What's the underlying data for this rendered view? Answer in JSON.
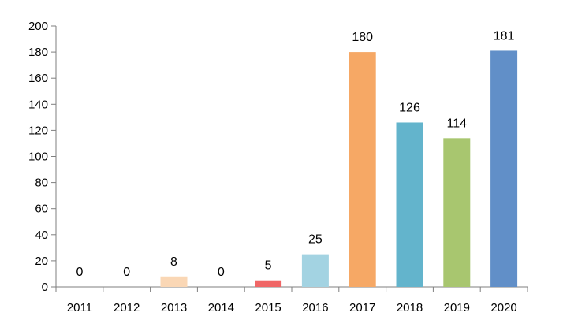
{
  "chart_data": {
    "type": "bar",
    "categories": [
      "2011",
      "2012",
      "2013",
      "2014",
      "2015",
      "2016",
      "2017",
      "2018",
      "2019",
      "2020"
    ],
    "values": [
      0,
      0,
      8,
      0,
      5,
      25,
      180,
      126,
      114,
      181
    ],
    "data_labels": [
      "0",
      "0",
      "8",
      "0",
      "5",
      "25",
      "180",
      "126",
      "114",
      "181"
    ],
    "colors": [
      "#4f81bd",
      "#4f81bd",
      "#fad7b5",
      "#4f81bd",
      "#f06666",
      "#a3d3e2",
      "#f6a865",
      "#63b4cc",
      "#a8c66f",
      "#618fc8"
    ],
    "title": "",
    "xlabel": "",
    "ylabel": "",
    "ylim": [
      0,
      200
    ],
    "yticks": [
      0,
      20,
      40,
      60,
      80,
      100,
      120,
      140,
      160,
      180,
      200
    ],
    "grid": false,
    "legend": "none"
  }
}
